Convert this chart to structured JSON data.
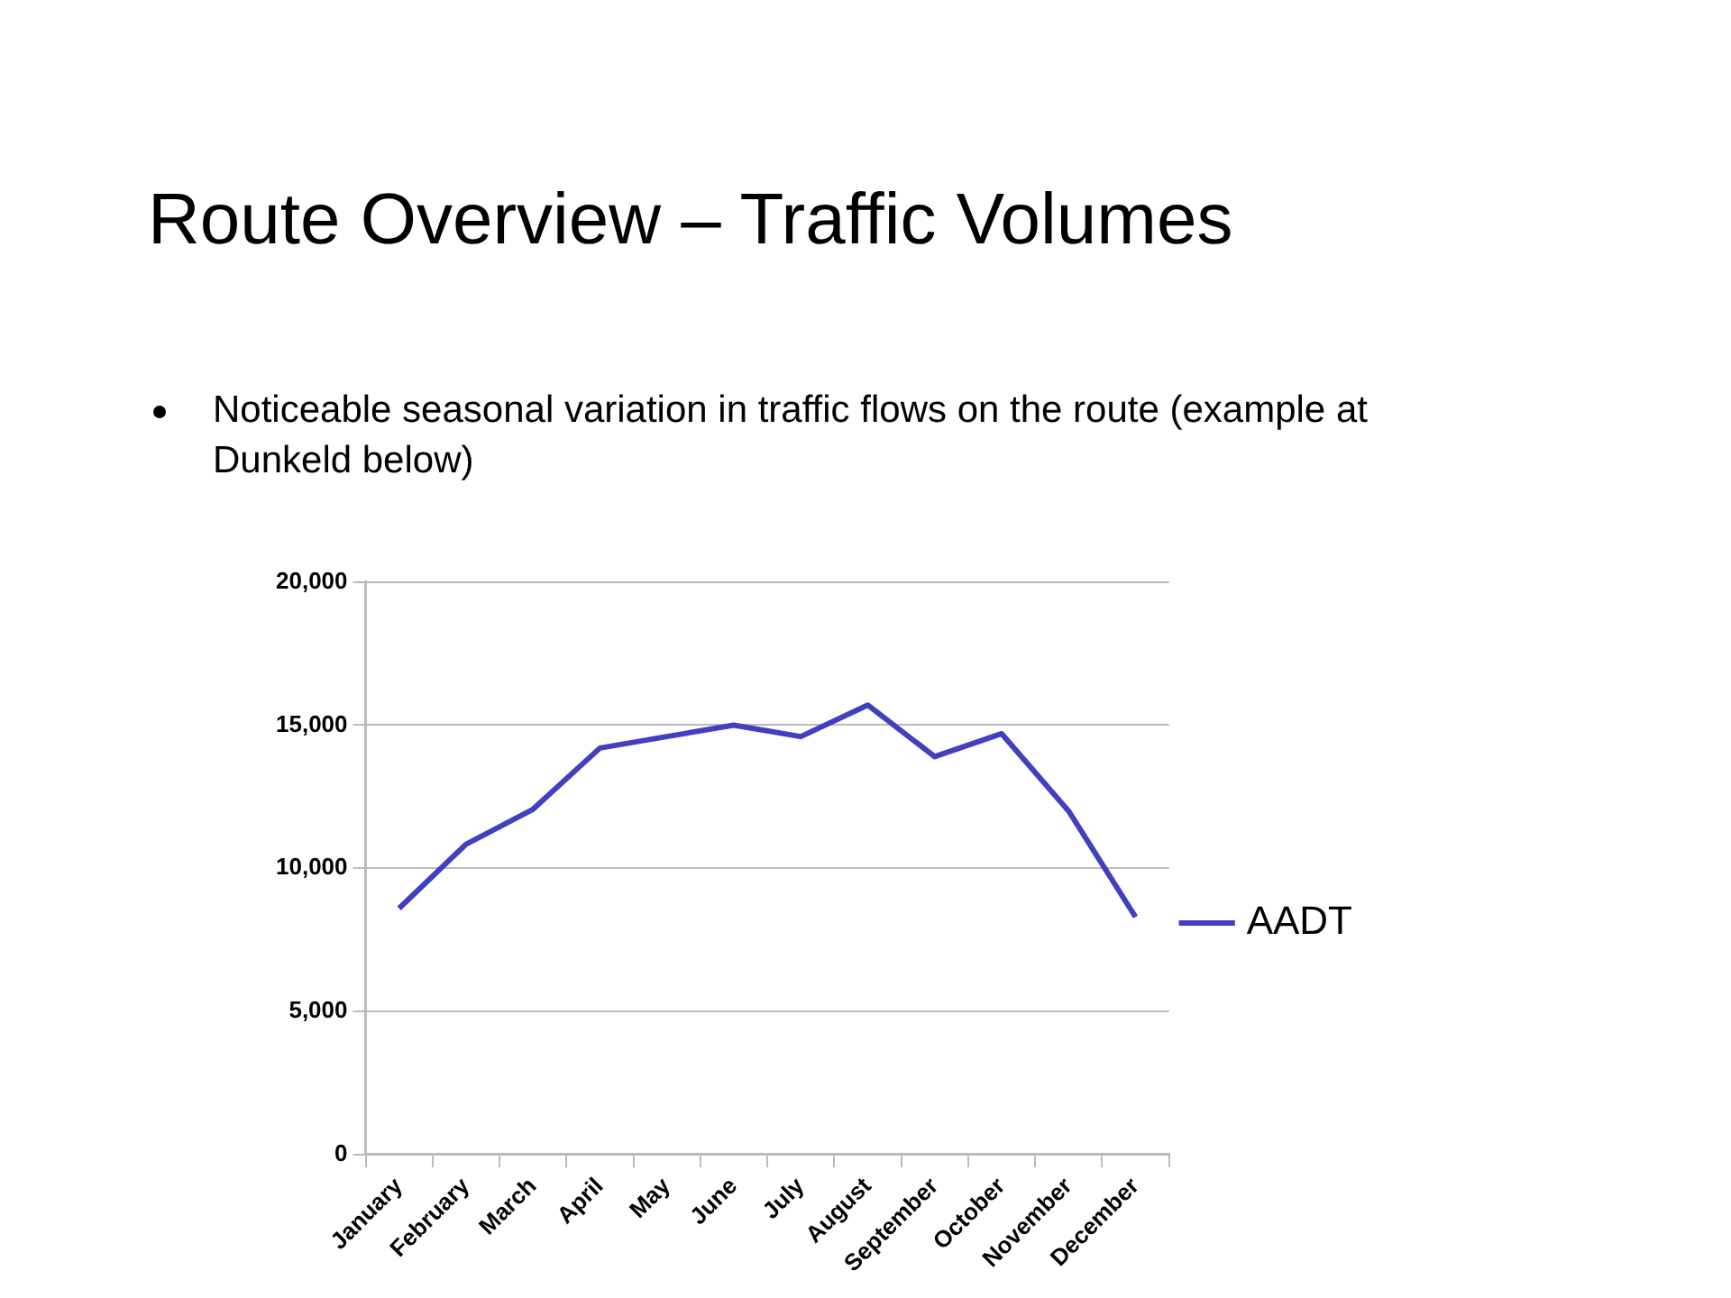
{
  "chart_data": {
    "type": "line",
    "title": "Route Overview – Traffic Volumes",
    "annotations": [
      "Noticeable seasonal variation in traffic flows on the route (example at Dunkeld below)"
    ],
    "categories": [
      "January",
      "February",
      "March",
      "April",
      "May",
      "June",
      "July",
      "August",
      "September",
      "October",
      "November",
      "December"
    ],
    "series": [
      {
        "name": "AADT",
        "color": "#4040c0",
        "values": [
          8600,
          10840,
          12060,
          14200,
          14600,
          15000,
          14600,
          15700,
          13900,
          14700,
          12000,
          8300
        ]
      }
    ],
    "ylim": [
      0,
      20000
    ],
    "yticks": [
      0,
      {
        "value": 5000,
        "label": "5,000"
      },
      {
        "value": 10000,
        "label": "10,000"
      },
      {
        "value": 15000,
        "label": "15,000"
      },
      {
        "value": 20000,
        "label": "20,000"
      }
    ],
    "grid": "y",
    "legend": "right",
    "marker": "none",
    "line_style": "solid"
  }
}
